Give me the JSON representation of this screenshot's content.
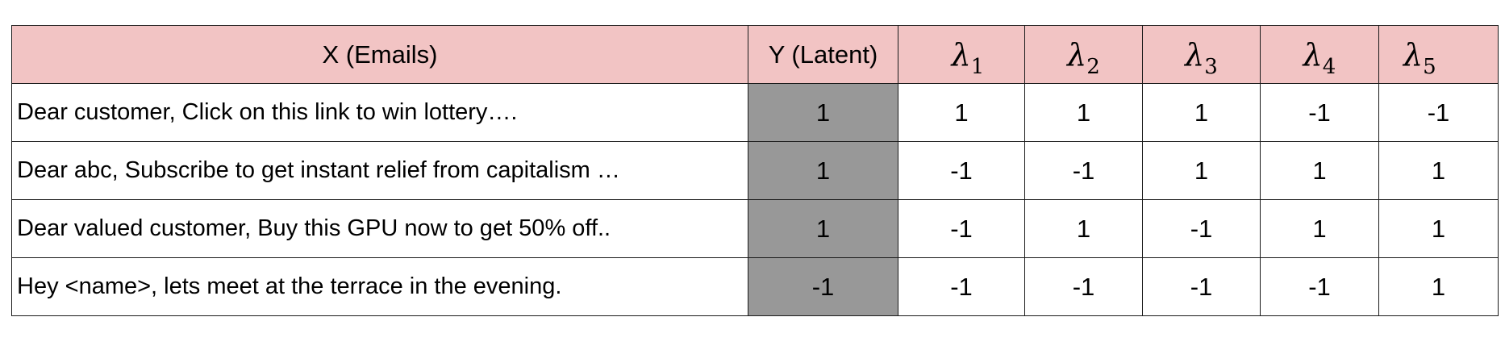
{
  "table": {
    "headers": {
      "x": "X (Emails)",
      "y": "Y (Latent)",
      "lambda_symbol": "λ",
      "lambda_subscripts": [
        "1",
        "2",
        "3",
        "4",
        "5"
      ]
    },
    "header_color": "#f2c4c4",
    "latent_column_color": "#989898",
    "rows": [
      {
        "email": "Dear customer, Click on this link to win lottery….",
        "latent": "1",
        "lambdas": [
          "1",
          "1",
          "1",
          "-1",
          "-1"
        ]
      },
      {
        "email": "Dear abc,  Subscribe to get instant relief from capitalism …",
        "latent": "1",
        "lambdas": [
          "-1",
          "-1",
          "1",
          "1",
          "1"
        ]
      },
      {
        "email": "Dear valued customer, Buy this GPU now to get 50% off..",
        "latent": "1",
        "lambdas": [
          "-1",
          "1",
          "-1",
          "1",
          "1"
        ]
      },
      {
        "email": "Hey <name>, lets meet at the terrace in the evening.",
        "latent": "-1",
        "lambdas": [
          "-1",
          "-1",
          "-1",
          "-1",
          "1"
        ]
      }
    ]
  }
}
